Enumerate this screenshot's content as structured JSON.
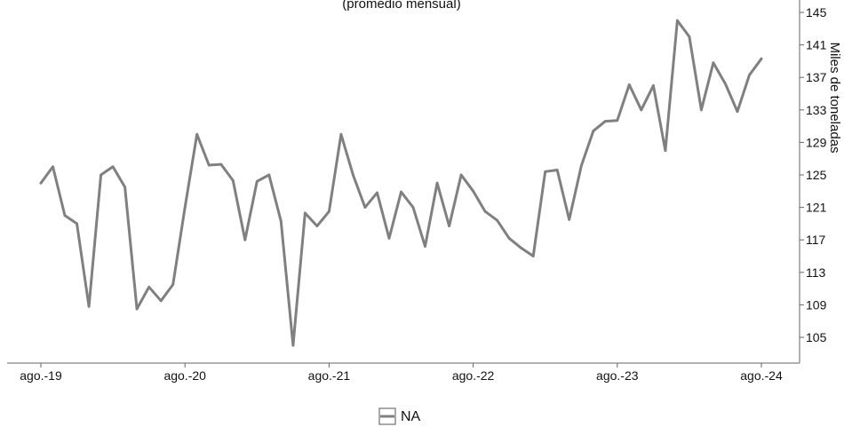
{
  "chart_data": {
    "type": "line",
    "title": "",
    "subtitle": "(promedio mensual)",
    "ylabel": "Miles de toneladas",
    "xlabel": "",
    "ylim": [
      101,
      146
    ],
    "y_axis_position": "right",
    "y_ticks": [
      105,
      109,
      113,
      117,
      121,
      125,
      129,
      133,
      137,
      141,
      145
    ],
    "x_tick_labels": [
      "ago.-19",
      "ago.-20",
      "ago.-21",
      "ago.-22",
      "ago.-23",
      "ago.-24"
    ],
    "legend": {
      "position": "bottom-center",
      "label": "NA"
    },
    "grid": false,
    "line_color": "#808080",
    "series": [
      {
        "name": "NA",
        "color": "#808080",
        "x": [
          "ago.-19",
          "sep.-19",
          "oct.-19",
          "nov.-19",
          "dic.-19",
          "ene.-20",
          "feb.-20",
          "mar.-20",
          "abr.-20",
          "may.-20",
          "jun.-20",
          "jul.-20",
          "ago.-20",
          "sep.-20",
          "oct.-20",
          "nov.-20",
          "dic.-20",
          "ene.-21",
          "feb.-21",
          "mar.-21",
          "abr.-21",
          "may.-21",
          "jun.-21",
          "jul.-21",
          "ago.-21",
          "sep.-21",
          "oct.-21",
          "nov.-21",
          "dic.-21",
          "ene.-22",
          "feb.-22",
          "mar.-22",
          "abr.-22",
          "may.-22",
          "jun.-22",
          "jul.-22",
          "ago.-22",
          "sep.-22",
          "oct.-22",
          "nov.-22",
          "dic.-22",
          "ene.-23",
          "feb.-23",
          "mar.-23",
          "abr.-23",
          "may.-23",
          "jun.-23",
          "jul.-23",
          "ago.-23",
          "sep.-23",
          "oct.-23",
          "nov.-23",
          "dic.-23",
          "ene.-24",
          "feb.-24",
          "mar.-24",
          "abr.-24",
          "may.-24",
          "jun.-24",
          "jul.-24",
          "ago.-24"
        ],
        "values": [
          124.0,
          126.0,
          120.0,
          119.0,
          108.8,
          125.0,
          126.0,
          123.5,
          108.5,
          111.2,
          109.5,
          111.5,
          121.0,
          130.0,
          126.2,
          126.3,
          124.3,
          117.0,
          124.2,
          125.0,
          119.3,
          104.0,
          120.3,
          118.7,
          120.5,
          130.0,
          125.0,
          121.0,
          122.8,
          117.2,
          122.9,
          121.0,
          116.2,
          124.0,
          118.7,
          125.0,
          123.0,
          120.5,
          119.4,
          117.2,
          116.0,
          115.0,
          125.4,
          125.6,
          119.5,
          126.1,
          130.4,
          131.6,
          131.7,
          136.1,
          133.0,
          136.0,
          128.0,
          144.0,
          142.0,
          133.0,
          138.8,
          136.2,
          132.8,
          137.3,
          139.3
        ]
      }
    ]
  }
}
